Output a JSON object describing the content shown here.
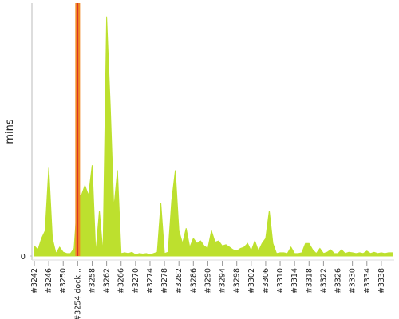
{
  "chart_data": {
    "type": "area",
    "y_label": "mins",
    "categories": [
      "#3242",
      null,
      null,
      null,
      "#3246",
      null,
      null,
      null,
      "#3250",
      null,
      null,
      null,
      "#3254 dock...",
      null,
      null,
      null,
      "#3258",
      null,
      null,
      null,
      "#3262",
      null,
      null,
      null,
      "#3266",
      null,
      null,
      null,
      "#3270",
      null,
      null,
      null,
      "#3274",
      null,
      null,
      null,
      "#3278",
      null,
      null,
      null,
      "#3282",
      null,
      null,
      null,
      "#3286",
      null,
      null,
      null,
      "#3290",
      null,
      null,
      null,
      "#3294",
      null,
      null,
      null,
      "#3298",
      null,
      null,
      null,
      "#3302",
      null,
      null,
      null,
      "#3306",
      null,
      null,
      null,
      "#3310",
      null,
      null,
      null,
      "#3314",
      null,
      null,
      null,
      "#3318",
      null,
      null,
      null,
      "#3322",
      null,
      null,
      null,
      "#3326",
      null,
      null,
      null,
      "#3330",
      null,
      null,
      null,
      "#3334",
      null,
      null,
      null,
      "#3338",
      null,
      null,
      null
    ],
    "values": [
      4,
      2.5,
      7,
      10,
      35,
      7,
      1,
      3.5,
      1.5,
      1,
      1,
      3,
      24,
      24,
      28,
      24,
      36,
      1,
      18,
      1,
      95,
      60,
      19,
      34,
      1,
      1.3,
      1,
      1.5,
      0.5,
      1,
      0.8,
      1,
      0.5,
      1,
      1.5,
      21,
      1,
      1.5,
      22,
      34,
      10,
      5,
      11,
      3.5,
      7,
      5,
      6,
      4,
      3,
      10,
      5.5,
      6,
      4,
      4.5,
      3.5,
      2.5,
      2,
      3,
      3.5,
      5,
      2,
      6,
      2,
      5,
      7,
      18,
      5,
      1,
      1.3,
      1.3,
      1,
      3.5,
      1,
      1,
      1.3,
      5,
      5,
      2.5,
      1,
      3,
      1,
      1.5,
      2.5,
      1,
      1,
      2.5,
      1,
      1.5,
      1.3,
      1,
      1.3,
      1,
      2,
      1,
      1.5,
      1,
      1.3,
      1,
      1.3,
      1.3
    ],
    "color": "#bde02e",
    "highlight_index": 12,
    "highlight_color": "#f08a24",
    "ylim": [
      0,
      100
    ],
    "yticks": [
      0
    ]
  }
}
